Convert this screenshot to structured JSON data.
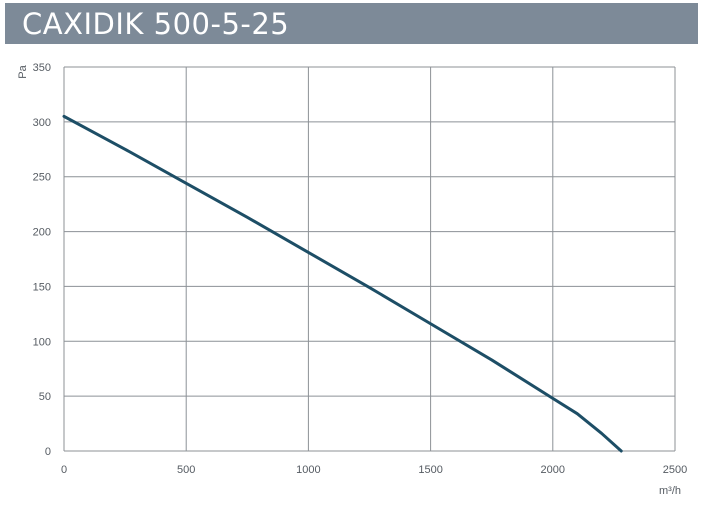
{
  "header": {
    "title": "CAXIDIK 500-5-25"
  },
  "colors": {
    "header_bg": "#7d8a98",
    "curve": "#1d4e66",
    "grid": "#8c9196"
  },
  "chart_data": {
    "type": "line",
    "title": "CAXIDIK 500-5-25",
    "xlabel": "m³/h",
    "ylabel": "Pa",
    "xlim": [
      0,
      2500
    ],
    "ylim": [
      0,
      350
    ],
    "xticks": [
      0,
      500,
      1000,
      1500,
      2000,
      2500
    ],
    "yticks": [
      0,
      50,
      100,
      150,
      200,
      250,
      300,
      350
    ],
    "xtick_labels": [
      "0",
      "500",
      "1000",
      "1500",
      "2000",
      "2500"
    ],
    "ytick_labels": [
      "0",
      "50",
      "100",
      "150",
      "200",
      "250",
      "300",
      "350"
    ],
    "grid": true,
    "series": [
      {
        "x": [
          0,
          250,
          500,
          750,
          1000,
          1250,
          1500,
          1750,
          2000,
          2100,
          2200,
          2280
        ],
        "y": [
          305,
          275,
          244,
          213,
          181,
          149,
          116,
          83,
          48,
          34,
          16,
          0
        ]
      }
    ]
  }
}
